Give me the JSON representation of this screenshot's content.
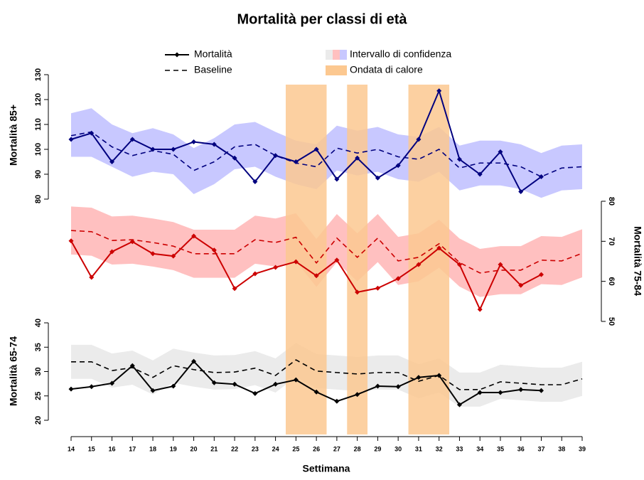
{
  "chart_data": {
    "type": "line",
    "title": "Mortalità per classi di età",
    "x_label": "Settimana",
    "x": [
      14,
      15,
      16,
      17,
      18,
      19,
      20,
      21,
      22,
      23,
      24,
      25,
      26,
      27,
      28,
      29,
      30,
      31,
      32,
      33,
      34,
      35,
      36,
      37,
      38,
      39
    ],
    "xlim": [
      14,
      39
    ],
    "xticks": [
      14,
      15,
      16,
      17,
      18,
      19,
      20,
      21,
      22,
      23,
      24,
      25,
      26,
      27,
      28,
      29,
      30,
      31,
      32,
      33,
      34,
      35,
      36,
      37,
      38,
      39
    ],
    "legend": {
      "mortality": "Mortalità",
      "baseline": "Baseline",
      "ci": "Intervallo di confidenza",
      "heatwave": "Ondata di calore"
    },
    "heatwave_color": "#fcc890",
    "heatwaves": [
      [
        24.5,
        26.5
      ],
      [
        27.5,
        28.5
      ],
      [
        30.5,
        32.5
      ]
    ],
    "panels": [
      {
        "y_label": "Mortalità 85+",
        "axis": "left",
        "ylim": [
          80,
          130
        ],
        "yticks": [
          80,
          90,
          100,
          110,
          120,
          130
        ],
        "color": "#00007f",
        "ci_color": "#c8c8ff",
        "mortality": [
          104,
          106.5,
          95,
          104,
          100,
          100,
          103,
          102,
          96.5,
          87,
          97.5,
          95,
          100,
          88,
          96.5,
          88.5,
          93.5,
          104,
          123.5,
          96,
          90,
          99,
          83,
          89,
          null,
          null
        ],
        "baseline": [
          105.5,
          107,
          101,
          97.5,
          99.5,
          98,
          91.5,
          95,
          101,
          102,
          97.5,
          94.5,
          93,
          100.5,
          98.5,
          100,
          97,
          96,
          100,
          92.5,
          94.5,
          94.5,
          93,
          89,
          92.5,
          93
        ],
        "ci_upper": [
          114.5,
          116.5,
          110,
          106.5,
          108.5,
          106,
          100.5,
          104.5,
          110,
          111,
          107,
          103.5,
          102,
          109.5,
          107.5,
          109,
          106,
          105,
          109,
          101.5,
          103.5,
          103.5,
          102,
          98.5,
          101.5,
          102
        ],
        "ci_lower": [
          97,
          97,
          93,
          89,
          91,
          90,
          82,
          86,
          92,
          93,
          89,
          86,
          84,
          91.5,
          89.5,
          91,
          88,
          87,
          91,
          83.5,
          85.5,
          85.5,
          84,
          80.5,
          83.5,
          84
        ]
      },
      {
        "y_label": "Mortalità 75-84",
        "axis": "right",
        "ylim": [
          50,
          80
        ],
        "yticks": [
          50,
          60,
          70,
          80
        ],
        "color": "#cc0000",
        "ci_color": "#ffc0c0",
        "mortality": [
          70.1,
          61,
          67.4,
          69.9,
          66.9,
          66.3,
          71.3,
          67.8,
          58.2,
          61.9,
          63.5,
          64.9,
          61.4,
          65.3,
          57.3,
          58.3,
          60.7,
          64.2,
          68.3,
          64.2,
          53,
          64.2,
          59,
          61.7,
          null,
          null
        ],
        "baseline": [
          72.7,
          72.4,
          70.2,
          70.4,
          69.7,
          68.8,
          66.9,
          66.9,
          66.9,
          70.4,
          69.7,
          71,
          64.6,
          70.8,
          66,
          70.8,
          65.1,
          66,
          69.4,
          64.7,
          62.1,
          62.8,
          62.8,
          65.3,
          65.1,
          67
        ],
        "ci_upper": [
          78.7,
          78.4,
          76.2,
          76.4,
          75.7,
          74.8,
          72.9,
          72.9,
          72.9,
          76.4,
          75.7,
          77,
          70.6,
          76.8,
          72,
          76.8,
          71.1,
          72,
          75.4,
          70.7,
          68.1,
          68.8,
          68.8,
          71.3,
          71.1,
          73
        ],
        "ci_lower": [
          66.7,
          66.4,
          64.2,
          64.4,
          63.7,
          62.8,
          60.9,
          60.9,
          60.9,
          64.4,
          63.7,
          65,
          58.6,
          64.8,
          60,
          64.8,
          59.1,
          60,
          63.4,
          58.7,
          56.1,
          56.8,
          56.8,
          59.3,
          59.1,
          61
        ]
      },
      {
        "y_label": "Mortalità 65-74",
        "axis": "left",
        "ylim": [
          20,
          40
        ],
        "yticks": [
          20,
          25,
          30,
          35,
          40
        ],
        "color": "#000000",
        "ci_color": "#ebebeb",
        "mortality": [
          26.4,
          26.9,
          27.6,
          31.2,
          26.1,
          27,
          32.1,
          27.7,
          27.4,
          25.5,
          27.4,
          28.3,
          25.8,
          23.9,
          25.3,
          27,
          26.9,
          28.8,
          29.2,
          23.2,
          25.7,
          25.7,
          26.3,
          26.1,
          null,
          null
        ],
        "baseline": [
          32,
          32,
          30.2,
          30.8,
          28.8,
          31.2,
          30.4,
          29.8,
          29.9,
          30.7,
          29.2,
          32.4,
          30.1,
          29.8,
          29.5,
          29.8,
          29.8,
          28,
          29.2,
          26.3,
          26.3,
          27.9,
          27.6,
          27.3,
          27.3,
          28.5
        ],
        "ci_upper": [
          35.5,
          35.5,
          33.7,
          34.3,
          32.3,
          34.7,
          33.9,
          33.3,
          33.4,
          34.2,
          32.7,
          35.9,
          33.6,
          33.3,
          33,
          33.3,
          33.3,
          31.5,
          32.7,
          29.8,
          29.8,
          31.4,
          31.1,
          30.8,
          30.8,
          32
        ],
        "ci_lower": [
          28.5,
          28.5,
          26.7,
          27.3,
          25.3,
          27.7,
          26.9,
          26.3,
          26.4,
          27.2,
          25.7,
          28.9,
          26.6,
          26.3,
          26,
          26.3,
          26.3,
          24.5,
          25.7,
          22.8,
          22.8,
          24.4,
          24.1,
          23.8,
          23.8,
          25
        ]
      }
    ]
  }
}
